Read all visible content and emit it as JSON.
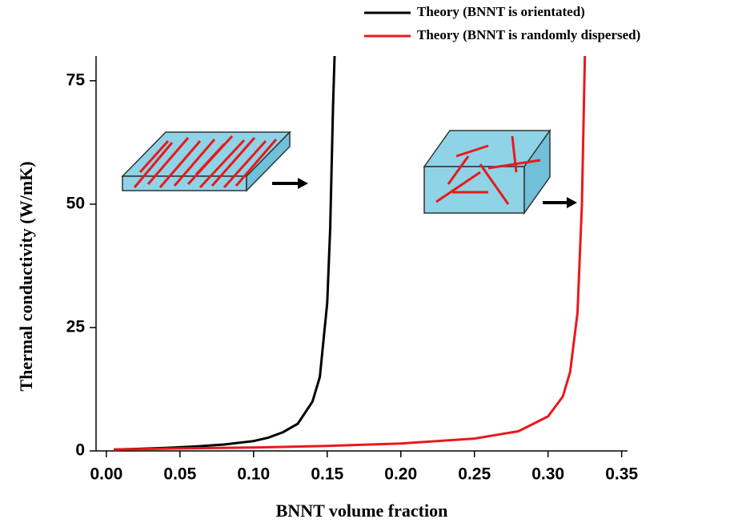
{
  "chart_data": {
    "type": "line",
    "x_label": "BNNT volume fraction",
    "y_label": "Thermal conductivity (W/mK)",
    "series": [
      {
        "name": "Theory (BNNT is orientated)",
        "color": "#000000",
        "x": [
          0.005,
          0.02,
          0.04,
          0.06,
          0.08,
          0.1,
          0.11,
          0.12,
          0.13,
          0.14,
          0.145,
          0.15,
          0.152,
          0.154,
          0.155
        ],
        "values": [
          0.3,
          0.4,
          0.6,
          0.9,
          1.3,
          2,
          2.7,
          3.8,
          5.5,
          10,
          15,
          30,
          45,
          70,
          80
        ]
      },
      {
        "name": "Theory (BNNT is randomly dispersed)",
        "color": "#e8191c",
        "x": [
          0.005,
          0.05,
          0.1,
          0.15,
          0.2,
          0.25,
          0.28,
          0.3,
          0.31,
          0.315,
          0.32,
          0.323,
          0.325
        ],
        "values": [
          0.3,
          0.5,
          0.7,
          1,
          1.5,
          2.5,
          4,
          7,
          11,
          16,
          28,
          50,
          80
        ]
      }
    ],
    "xlim": [
      -0.007,
      0.354
    ],
    "ylim": [
      0,
      80
    ],
    "xticks": [
      {
        "value": 0,
        "label": "0.00"
      },
      0.05,
      {
        "value": 0.1,
        "label": "0.10"
      },
      0.15,
      {
        "value": 0.2,
        "label": "0.20"
      },
      0.25,
      {
        "value": 0.3,
        "label": "0.30"
      },
      0.35
    ],
    "yticks": [
      0,
      25,
      50,
      75
    ],
    "legend": "top-right"
  }
}
